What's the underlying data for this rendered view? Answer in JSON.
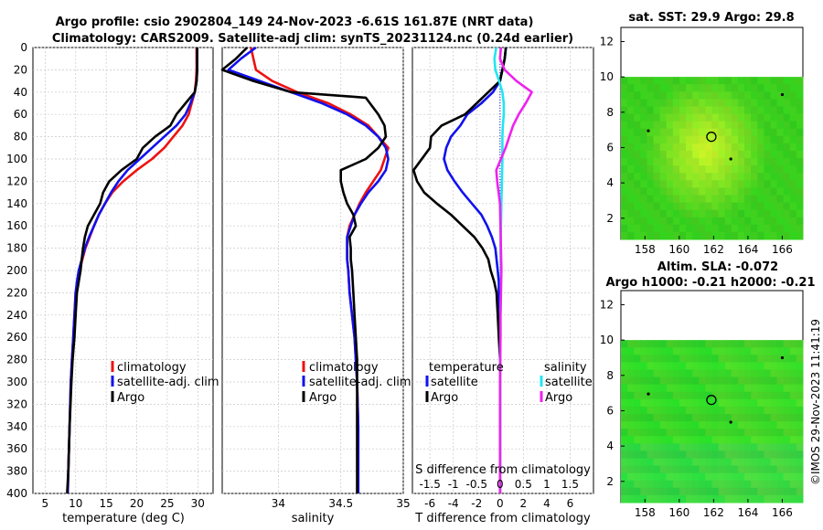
{
  "colors": {
    "climatology": "#ee1111",
    "satellite": "#1111ee",
    "argo": "#000000",
    "s_satellite": "#22e6f0",
    "s_argo": "#ee22ee",
    "map_fill": "#33cc22",
    "map_warm": "#b8f030"
  },
  "header": {
    "title1": "Argo profile: csio 2902804_149 24-Nov-2023 -6.61S 161.87E (NRT data)",
    "title2": "Climatology: CARS2009. Satellite-adj clim: synTS_20231124.nc (0.24d earlier)"
  },
  "depth_axis": {
    "ticks": [
      "0",
      "20",
      "40",
      "60",
      "80",
      "100",
      "120",
      "140",
      "160",
      "180",
      "200",
      "220",
      "240",
      "260",
      "280",
      "300",
      "320",
      "340",
      "360",
      "380",
      "400"
    ]
  },
  "legend": {
    "climatology": "climatology",
    "satellite_adj": "satellite-adj. clim",
    "argo": "Argo",
    "temperature": "temperature",
    "salinity": "salinity",
    "satellite": "satellite"
  },
  "maps": {
    "sst_title": "sat. SST: 29.9 Argo: 29.8",
    "sla_title1": "Altim. SLA: -0.072",
    "sla_title2": "Argo h1000: -0.21 h2000: -0.21",
    "x_ticks": [
      "158",
      "160",
      "162",
      "164",
      "166"
    ],
    "y_ticks": [
      "2",
      "4",
      "6",
      "8",
      "10",
      "12"
    ],
    "xlim": [
      156.6,
      167.2
    ],
    "ylim": [
      0.8,
      12.8
    ],
    "data_top_lat": 10,
    "float_lon": 161.87,
    "float_lat": 6.61
  },
  "watermark": "©IMOS 29-Nov-2023 11:41:19",
  "chart_data": [
    {
      "type": "line",
      "panel": "temperature",
      "xlabel": "temperature (deg C)",
      "ylabel": "",
      "xlim": [
        3,
        32.5
      ],
      "ylim": [
        400,
        0
      ],
      "x_ticks": [
        "5",
        "10",
        "15",
        "20",
        "25",
        "30"
      ],
      "series": [
        {
          "name": "climatology",
          "x": [
            29.8,
            29.8,
            29.7,
            29.5,
            29.0,
            28.5,
            27.5,
            26.0,
            24.5,
            22.5,
            20.0,
            17.8,
            16.0,
            14.8,
            13.8,
            13.0,
            12.3,
            11.6,
            11.1,
            10.6,
            10.3,
            10.0,
            9.8,
            9.6,
            9.4,
            9.2,
            9.0,
            8.8,
            8.7
          ],
          "y": [
            0,
            20,
            30,
            40,
            50,
            60,
            70,
            80,
            90,
            100,
            110,
            120,
            130,
            140,
            150,
            160,
            170,
            180,
            190,
            200,
            210,
            220,
            240,
            260,
            280,
            300,
            340,
            380,
            400
          ]
        },
        {
          "name": "satellite-adj. clim",
          "x": [
            29.9,
            29.9,
            29.8,
            29.5,
            28.8,
            28.0,
            26.5,
            24.5,
            22.5,
            20.5,
            18.5,
            17.0,
            15.8,
            14.8,
            13.8,
            13.0,
            12.2,
            11.5,
            11.0,
            10.5,
            10.2,
            10.0,
            9.8,
            9.6,
            9.4,
            9.2,
            9.0,
            8.8,
            8.7
          ],
          "y": [
            0,
            20,
            30,
            40,
            50,
            60,
            70,
            80,
            90,
            100,
            110,
            120,
            130,
            140,
            150,
            160,
            170,
            180,
            190,
            200,
            210,
            220,
            240,
            260,
            280,
            300,
            340,
            380,
            400
          ]
        },
        {
          "name": "Argo",
          "x": [
            29.9,
            29.9,
            29.8,
            29.5,
            28.0,
            26.5,
            25.5,
            23.0,
            21.0,
            20.0,
            17.5,
            15.5,
            14.5,
            14.0,
            13.0,
            12.0,
            11.5,
            11.2,
            11.0,
            10.8,
            10.5,
            10.2,
            10.0,
            9.8,
            9.5,
            9.3,
            9.0,
            8.8,
            8.6
          ],
          "y": [
            0,
            20,
            30,
            40,
            50,
            60,
            70,
            80,
            90,
            100,
            110,
            120,
            130,
            140,
            150,
            160,
            170,
            180,
            190,
            200,
            210,
            220,
            240,
            260,
            280,
            300,
            340,
            380,
            400
          ]
        }
      ]
    },
    {
      "type": "line",
      "panel": "salinity",
      "xlabel": "salinity",
      "ylabel": "",
      "xlim": [
        33.55,
        35.0
      ],
      "ylim": [
        400,
        0
      ],
      "x_ticks": [
        "34",
        "34.5",
        "35"
      ],
      "series": [
        {
          "name": "climatology",
          "x": [
            33.78,
            33.8,
            33.82,
            33.95,
            34.15,
            34.4,
            34.58,
            34.72,
            34.8,
            34.88,
            34.85,
            34.82,
            34.76,
            34.7,
            34.65,
            34.61,
            34.57,
            34.55,
            34.55,
            34.55,
            34.56,
            34.57,
            34.59,
            34.61,
            34.62,
            34.63,
            34.64,
            34.64,
            34.64
          ],
          "y": [
            0,
            10,
            20,
            30,
            40,
            50,
            60,
            70,
            80,
            90,
            100,
            110,
            120,
            130,
            140,
            150,
            160,
            170,
            180,
            190,
            200,
            220,
            240,
            260,
            280,
            300,
            340,
            380,
            400
          ]
        },
        {
          "name": "satellite-adj. clim",
          "x": [
            33.82,
            33.7,
            33.6,
            33.85,
            34.1,
            34.35,
            34.55,
            34.7,
            34.8,
            34.86,
            34.88,
            34.86,
            34.8,
            34.72,
            34.66,
            34.61,
            34.58,
            34.55,
            34.55,
            34.55,
            34.56,
            34.57,
            34.59,
            34.61,
            34.62,
            34.63,
            34.64,
            34.64,
            34.64
          ],
          "y": [
            0,
            10,
            20,
            30,
            40,
            50,
            60,
            70,
            80,
            90,
            100,
            110,
            120,
            130,
            140,
            150,
            160,
            170,
            180,
            190,
            200,
            220,
            240,
            260,
            280,
            300,
            340,
            380,
            400
          ]
        },
        {
          "name": "Argo",
          "x": [
            33.75,
            33.66,
            33.55,
            33.8,
            34.1,
            34.7,
            34.8,
            34.85,
            34.86,
            34.8,
            34.7,
            34.5,
            34.5,
            34.52,
            34.55,
            34.6,
            34.62,
            34.57,
            34.58,
            34.58,
            34.59,
            34.6,
            34.61,
            34.62,
            34.63,
            34.63,
            34.63,
            34.63,
            34.63
          ],
          "y": [
            0,
            10,
            20,
            30,
            40,
            45,
            60,
            70,
            80,
            90,
            100,
            110,
            120,
            130,
            140,
            150,
            160,
            170,
            180,
            190,
            200,
            220,
            240,
            260,
            280,
            300,
            340,
            380,
            400
          ]
        }
      ]
    },
    {
      "type": "line",
      "panel": "difference",
      "xlabel": "T difference from climatology",
      "xlabel2": "S difference from climatology",
      "xlim": [
        -7.5,
        8.0
      ],
      "ylim": [
        400,
        0
      ],
      "x_ticks": [
        "-6",
        "-4",
        "-2",
        "0",
        "2",
        "4",
        "6"
      ],
      "s_ticks": [
        "-1.5",
        "-1",
        "-0.5",
        "0",
        "0.5",
        "1",
        "1.5"
      ],
      "s_scale": 4,
      "series": [
        {
          "name": "T satellite",
          "x": [
            0.5,
            0.4,
            0.2,
            0.0,
            -0.6,
            -1.6,
            -2.8,
            -3.4,
            -4.2,
            -4.6,
            -4.8,
            -4.5,
            -3.9,
            -3.2,
            -2.4,
            -1.6,
            -1.1,
            -0.7,
            -0.4,
            -0.3,
            -0.2,
            -0.1,
            -0.1,
            0.0,
            0.0,
            0.0,
            0.0,
            0.0,
            0.0
          ],
          "y": [
            0,
            10,
            20,
            30,
            40,
            50,
            60,
            70,
            80,
            90,
            100,
            110,
            120,
            130,
            140,
            150,
            160,
            170,
            180,
            190,
            200,
            210,
            220,
            240,
            260,
            300,
            340,
            380,
            400
          ]
        },
        {
          "name": "T Argo",
          "x": [
            0.5,
            0.4,
            0.2,
            0.0,
            -1.0,
            -2.0,
            -3.0,
            -5.0,
            -5.9,
            -6.0,
            -7.4,
            -7.1,
            -6.5,
            -5.4,
            -4.2,
            -3.2,
            -2.2,
            -1.5,
            -1.0,
            -0.8,
            -0.5,
            -0.3,
            -0.2,
            -0.1,
            0.0,
            0.0,
            0.0,
            0.0,
            0.0
          ],
          "y": [
            0,
            10,
            20,
            30,
            40,
            50,
            60,
            70,
            80,
            90,
            110,
            120,
            130,
            140,
            150,
            160,
            170,
            180,
            190,
            200,
            210,
            220,
            240,
            260,
            280,
            300,
            340,
            380,
            400
          ]
        },
        {
          "name": "S satellite",
          "x": [
            -0.08,
            -0.12,
            -0.1,
            -0.02,
            0.05,
            0.08,
            0.08,
            0.06,
            0.05,
            0.05,
            0.04,
            0.03,
            0.02,
            0.01,
            0.02,
            0.02,
            0.01,
            0.01,
            0.0,
            0.0,
            0.0,
            0.0
          ],
          "y": [
            0,
            10,
            20,
            30,
            40,
            50,
            60,
            70,
            80,
            100,
            120,
            140,
            160,
            180,
            200,
            220,
            240,
            260,
            280,
            300,
            340,
            400
          ]
        },
        {
          "name": "S Argo",
          "x": [
            0.02,
            0.0,
            0.1,
            0.35,
            0.68,
            0.55,
            0.4,
            0.28,
            0.2,
            0.12,
            0.02,
            -0.08,
            -0.06,
            0.0,
            0.01,
            0.02,
            0.03,
            0.02,
            0.01,
            0.01,
            0.0,
            0.0
          ],
          "y": [
            0,
            10,
            20,
            30,
            40,
            50,
            60,
            70,
            80,
            90,
            100,
            110,
            120,
            140,
            160,
            180,
            200,
            220,
            240,
            260,
            300,
            400
          ]
        }
      ]
    }
  ]
}
